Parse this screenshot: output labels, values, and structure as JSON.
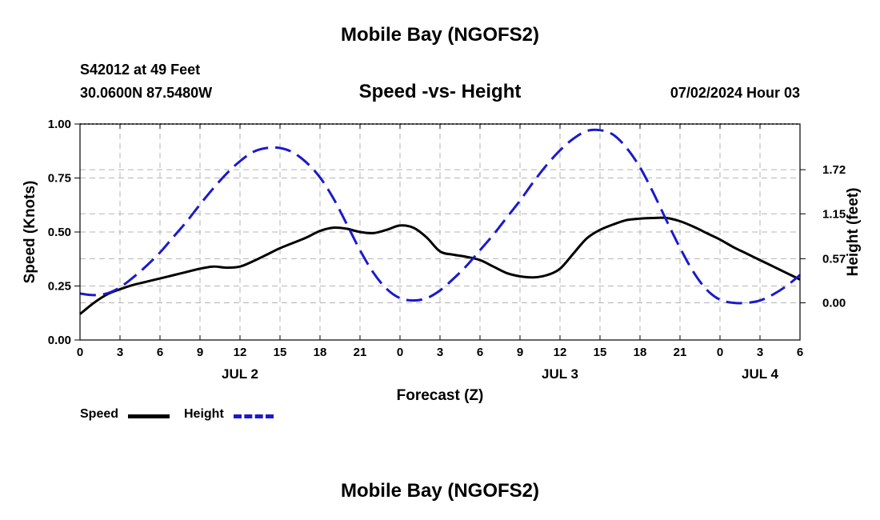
{
  "header": {
    "title": "Mobile Bay (NGOFS2)",
    "station": "S42012 at 49 Feet",
    "coords": "30.0600N  87.5480W",
    "subtitle": "Speed -vs- Height",
    "datetime": "07/02/2024 Hour 03"
  },
  "footer": {
    "title": "Mobile Bay (NGOFS2)"
  },
  "chart_data": {
    "type": "line",
    "title": "Speed -vs- Height",
    "xlabel": "Forecast (Z)",
    "ylabel": "Speed (Knots)",
    "y2label": "Height (feet)",
    "xlim": [
      0,
      54
    ],
    "ylim": [
      0,
      1
    ],
    "y2lim": [
      -0.48,
      2.31
    ],
    "grid": true,
    "x_ticks": [
      0,
      3,
      6,
      9,
      12,
      15,
      18,
      21,
      24,
      27,
      30,
      33,
      36,
      39,
      42,
      45,
      48,
      51,
      54
    ],
    "x_tick_labels": [
      "0",
      "3",
      "6",
      "9",
      "12",
      "15",
      "18",
      "21",
      "0",
      "3",
      "6",
      "9",
      "12",
      "15",
      "18",
      "21",
      "0",
      "3",
      "6"
    ],
    "date_labels": [
      {
        "x": 12,
        "label": "JUL 2"
      },
      {
        "x": 36,
        "label": "JUL 3"
      },
      {
        "x": 51,
        "label": "JUL 4"
      }
    ],
    "y_ticks": [
      0,
      0.25,
      0.5,
      0.75,
      1.0
    ],
    "y_tick_labels": [
      "0.00",
      "0.25",
      "0.50",
      "0.75",
      "1.00"
    ],
    "y2_ticks": [
      0,
      0.57,
      1.15,
      1.72
    ],
    "y2_tick_labels": [
      "0.00",
      "0.57",
      "1.15",
      "1.72"
    ],
    "series": [
      {
        "name": "Speed",
        "axis": "left",
        "color": "#000000",
        "style": "solid",
        "x": [
          0,
          1,
          2,
          3,
          4,
          5,
          6,
          7,
          8,
          9,
          10,
          11,
          12,
          13,
          14,
          15,
          16,
          17,
          18,
          19,
          20,
          21,
          22,
          23,
          24,
          25,
          26,
          27,
          28,
          29,
          30,
          31,
          32,
          33,
          34,
          35,
          36,
          37,
          38,
          39,
          40,
          41,
          42,
          43,
          44,
          45,
          46,
          47,
          48,
          49,
          50,
          51,
          52,
          53,
          54
        ],
        "values": [
          0.12,
          0.17,
          0.21,
          0.235,
          0.255,
          0.27,
          0.285,
          0.3,
          0.315,
          0.33,
          0.34,
          0.335,
          0.34,
          0.365,
          0.395,
          0.425,
          0.45,
          0.475,
          0.505,
          0.52,
          0.515,
          0.5,
          0.495,
          0.51,
          0.53,
          0.52,
          0.475,
          0.41,
          0.395,
          0.385,
          0.37,
          0.34,
          0.31,
          0.295,
          0.29,
          0.3,
          0.33,
          0.4,
          0.47,
          0.51,
          0.535,
          0.555,
          0.562,
          0.565,
          0.565,
          0.55,
          0.525,
          0.495,
          0.465,
          0.43,
          0.4,
          0.37,
          0.34,
          0.31,
          0.28
        ]
      },
      {
        "name": "Height",
        "axis": "right",
        "color": "#1a1acc",
        "style": "dashed",
        "x": [
          0,
          1,
          2,
          3,
          4,
          5,
          6,
          7,
          8,
          9,
          10,
          11,
          12,
          13,
          14,
          15,
          16,
          17,
          18,
          19,
          20,
          21,
          22,
          23,
          24,
          25,
          26,
          27,
          28,
          29,
          30,
          31,
          32,
          33,
          34,
          35,
          36,
          37,
          38,
          39,
          40,
          41,
          42,
          43,
          44,
          45,
          46,
          47,
          48,
          49,
          50,
          51,
          52,
          53,
          54
        ],
        "values": [
          0.12,
          0.1,
          0.12,
          0.2,
          0.33,
          0.48,
          0.65,
          0.85,
          1.05,
          1.27,
          1.48,
          1.67,
          1.83,
          1.95,
          2.0,
          2.0,
          1.94,
          1.81,
          1.62,
          1.35,
          1.02,
          0.68,
          0.39,
          0.18,
          0.06,
          0.03,
          0.06,
          0.16,
          0.31,
          0.48,
          0.68,
          0.88,
          1.1,
          1.32,
          1.56,
          1.78,
          1.97,
          2.12,
          2.22,
          2.23,
          2.17,
          2.0,
          1.75,
          1.42,
          1.06,
          0.71,
          0.4,
          0.17,
          0.04,
          0.0,
          0.0,
          0.03,
          0.11,
          0.22,
          0.36
        ]
      }
    ],
    "legend": [
      {
        "label": "Speed",
        "color": "#000000",
        "style": "solid"
      },
      {
        "label": "Height",
        "color": "#1a1acc",
        "style": "dashed"
      }
    ],
    "legend_position": "bottom-left"
  }
}
